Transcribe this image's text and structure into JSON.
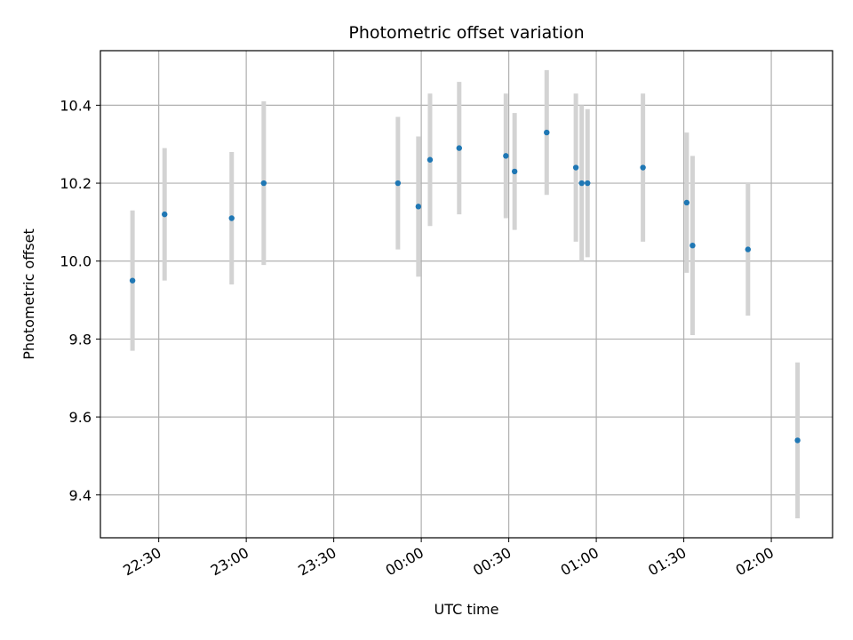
{
  "chart_data": {
    "type": "scatter",
    "title": "Photometric offset variation",
    "xlabel": "UTC time",
    "ylabel": "Photometric offset",
    "x_ticks": [
      "22:30",
      "23:00",
      "23:30",
      "00:00",
      "00:30",
      "01:00",
      "01:30",
      "02:00"
    ],
    "y_ticks": [
      "9.4",
      "9.6",
      "9.8",
      "10.0",
      "10.2",
      "10.4"
    ],
    "xlim": [
      "22:10",
      "02:21"
    ],
    "ylim": [
      9.29,
      10.54
    ],
    "grid": true,
    "legend": "none",
    "colors": {
      "point": "#1f77b4",
      "errorbar": "#d3d3d3",
      "grid": "#b0b0b0"
    },
    "series": [
      {
        "x": [
          "22:21",
          "22:32",
          "22:55",
          "23:06",
          "23:52",
          "23:59",
          "00:03",
          "00:13",
          "00:29",
          "00:32",
          "00:43",
          "00:53",
          "00:55",
          "00:57",
          "01:16",
          "01:31",
          "01:33",
          "01:52",
          "02:09"
        ],
        "y": [
          9.95,
          10.12,
          10.11,
          10.2,
          10.2,
          10.14,
          10.26,
          10.29,
          10.27,
          10.23,
          10.33,
          10.24,
          10.2,
          10.2,
          10.24,
          10.15,
          10.04,
          10.03,
          9.54
        ],
        "yerr": [
          0.18,
          0.17,
          0.17,
          0.21,
          0.17,
          0.18,
          0.17,
          0.17,
          0.16,
          0.15,
          0.16,
          0.19,
          0.2,
          0.19,
          0.19,
          0.18,
          0.23,
          0.17,
          0.2
        ]
      }
    ]
  }
}
